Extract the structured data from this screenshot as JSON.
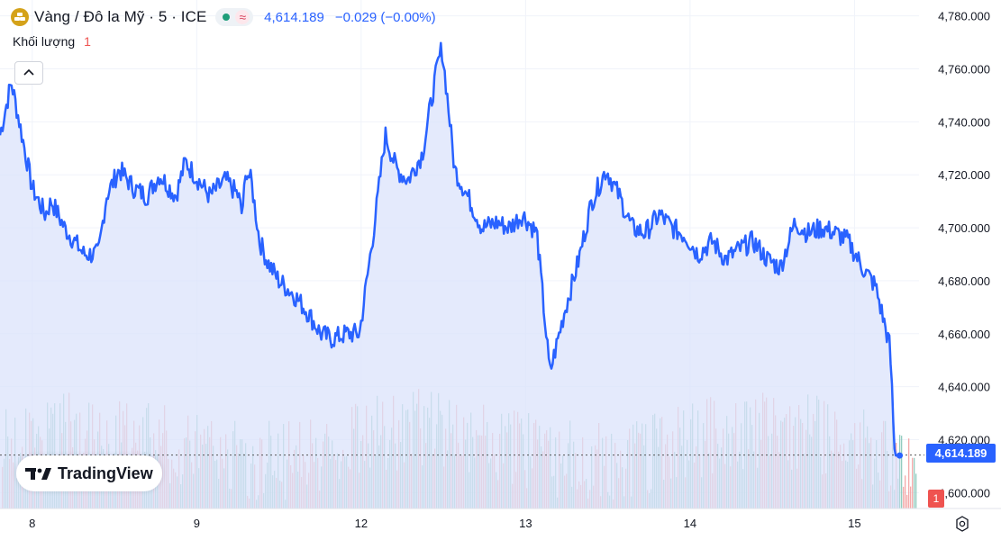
{
  "header": {
    "symbol_title": "Vàng / Đô la Mỹ · 5 · ICE",
    "status_market": "●",
    "status_delayed": "≈",
    "last_price": "4,614.189",
    "change": "−0.029 (−0.00%)"
  },
  "volume_indicator": {
    "label": "Khối lượng",
    "value": "1"
  },
  "logo": {
    "text": "TradingView"
  },
  "price_badge": "4,614.189",
  "volume_badge": "1",
  "colors": {
    "line": "#2962ff",
    "area_top": "#dbe3fb",
    "up_volume": "#7fc3b5",
    "down_volume": "#f19a9a",
    "badge": "#2962ff"
  },
  "icons": {
    "symbol": "gold-bars-icon",
    "collapse": "chevron-up-icon",
    "settings": "gear-icon"
  },
  "chart_data": {
    "type": "area",
    "x_ticks": [
      "8",
      "9",
      "12",
      "13",
      "14",
      "15"
    ],
    "y_ticks": [
      "4,600.000",
      "4,620.000",
      "4,640.000",
      "4,660.000",
      "4,680.000",
      "4,700.000",
      "4,720.000",
      "4,740.000",
      "4,760.000",
      "4,780.000"
    ],
    "ylim": [
      4594,
      4786
    ],
    "series": [
      {
        "x": [
          0,
          0.7,
          1.2,
          2.0,
          2.8,
          3.2,
          4.0,
          5.2,
          6.1,
          6.6,
          7.4,
          8.3,
          9.1,
          9.9,
          10.9,
          11.5,
          12.3,
          13.0,
          14.0,
          14.8,
          15.0,
          15.3,
          15.6,
          16.1,
          16.6,
          17.3,
          18.2,
          19.1,
          19.9,
          20.6,
          21.5,
          22.3,
          23.2,
          23.9,
          24.6,
          25.3,
          26.2,
          27.1,
          27.4,
          27.7,
          28.2,
          29.0,
          29.9,
          30.8,
          31.6,
          32.4,
          33.3,
          34.1,
          35.0,
          35.9,
          36.7,
          37.6,
          38.4,
          39.2,
          40.0,
          40.9,
          41.7,
          42.5,
          43.3,
          44.2,
          45.0,
          45.9,
          46.7,
          47.6,
          48.4,
          49.3,
          50.1,
          51.0,
          51.8,
          52.6,
          53.5,
          54.3,
          55.2,
          55.5,
          55.8
        ],
        "y": [
          4735,
          4755,
          4740,
          4715,
          4705,
          4710,
          4700,
          4690,
          4690,
          4712,
          4722,
          4715,
          4712,
          4720,
          4712,
          4725,
          4718,
          4712,
          4718,
          4712,
          4705,
          4722,
          4717,
          4695,
          4687,
          4680,
          4675,
          4668,
          4660,
          4658,
          4660,
          4660,
          4700,
          4735,
          4722,
          4718,
          4728,
          4760,
          4768,
          4752,
          4722,
          4712,
          4700,
          4702,
          4700,
          4705,
          4698,
          4645,
          4668,
          4688,
          4710,
          4722,
          4712,
          4700,
          4698,
          4705,
          4700,
          4697,
          4690,
          4695,
          4688,
          4692,
          4695,
          4688,
          4685,
          4702,
          4698,
          4700,
          4698,
          4695,
          4685,
          4678,
          4655,
          4614,
          4614
        ]
      }
    ]
  }
}
